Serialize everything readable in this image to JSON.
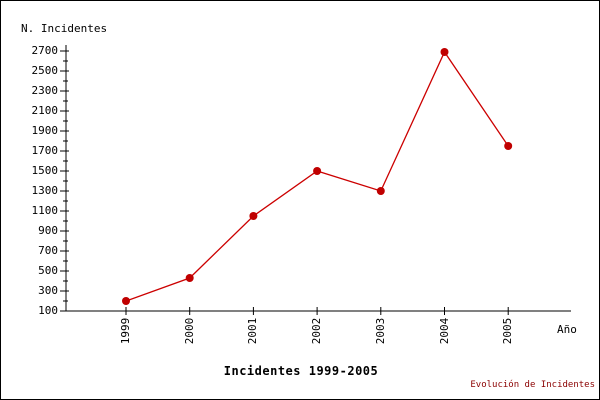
{
  "page": {
    "background_color": "#ffffff",
    "frame_color": "#000000"
  },
  "chart_data": {
    "type": "line",
    "title": "Incidentes 1999-2005",
    "y_axis_label": "N. Incidentes",
    "x_axis_label": "Año",
    "footer": "Evolución de Incidentes",
    "categories": [
      "1999",
      "2000",
      "2001",
      "2002",
      "2003",
      "2004",
      "2005"
    ],
    "series": [
      {
        "name": "Incidentes",
        "values": [
          200,
          430,
          1050,
          1500,
          1300,
          2690,
          1750
        ]
      }
    ],
    "y_tick_labels": [
      100,
      300,
      500,
      700,
      900,
      1100,
      1300,
      1500,
      1700,
      1900,
      2100,
      2300,
      2500,
      2700
    ],
    "y_minor_tick_step": 100,
    "ylim": [
      100,
      2700
    ],
    "grid": false,
    "legend_position": "none",
    "line_color": "#cc0000",
    "marker_color": "#c00000",
    "marker_shape": "filled-circle",
    "axis_color": "#000000",
    "footer_color": "#8b0000",
    "text_color": "#000000"
  }
}
